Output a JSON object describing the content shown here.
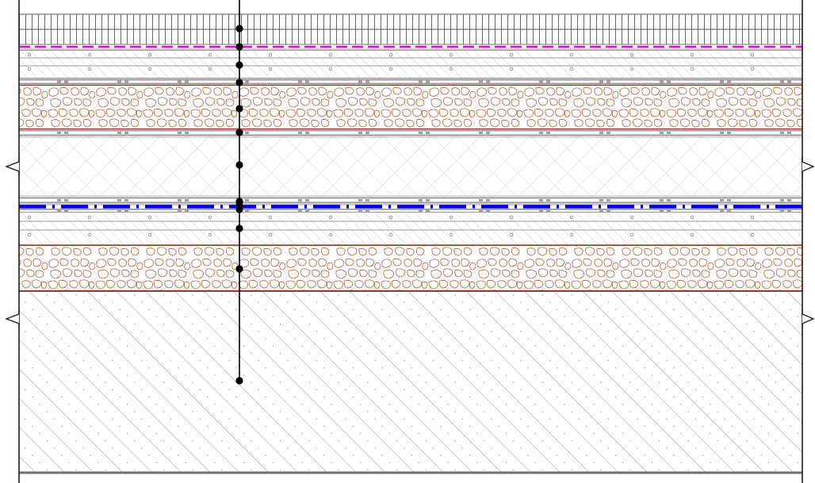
{
  "drawing": {
    "kind": "construction-layer-section",
    "colors": {
      "background": "#ffffff",
      "line": "#1a1a1a",
      "hatch": "#b8b8b8",
      "gravel_stroke": "#b0603a",
      "gravel_border": "#9a3c1c",
      "membrane_magenta": "#e000e0",
      "membrane_blue": "#0000e6",
      "plate_gray": "#9a9a9a",
      "leader": "#000000"
    },
    "layers": [
      {
        "id": "top-grid-layer",
        "pattern": "vertical-grid"
      },
      {
        "id": "magenta-membrane",
        "pattern": "dashed-magenta"
      },
      {
        "id": "upper-hatched-band",
        "pattern": "diagonal-circles"
      },
      {
        "id": "upper-plate",
        "pattern": "gray-plate"
      },
      {
        "id": "upper-gravel-layer",
        "pattern": "gravel"
      },
      {
        "id": "middle-plate",
        "pattern": "gray-plate"
      },
      {
        "id": "insulation-layer",
        "pattern": "crosshatch"
      },
      {
        "id": "lower-plate",
        "pattern": "gray-plate"
      },
      {
        "id": "blue-membrane",
        "pattern": "dashed-blue"
      },
      {
        "id": "lower-hatched-band",
        "pattern": "diagonal-circles"
      },
      {
        "id": "lower-gravel-layer",
        "pattern": "gravel"
      },
      {
        "id": "concrete-base",
        "pattern": "diagonal-hatch"
      }
    ],
    "leader": {
      "marker_count": 14
    }
  }
}
